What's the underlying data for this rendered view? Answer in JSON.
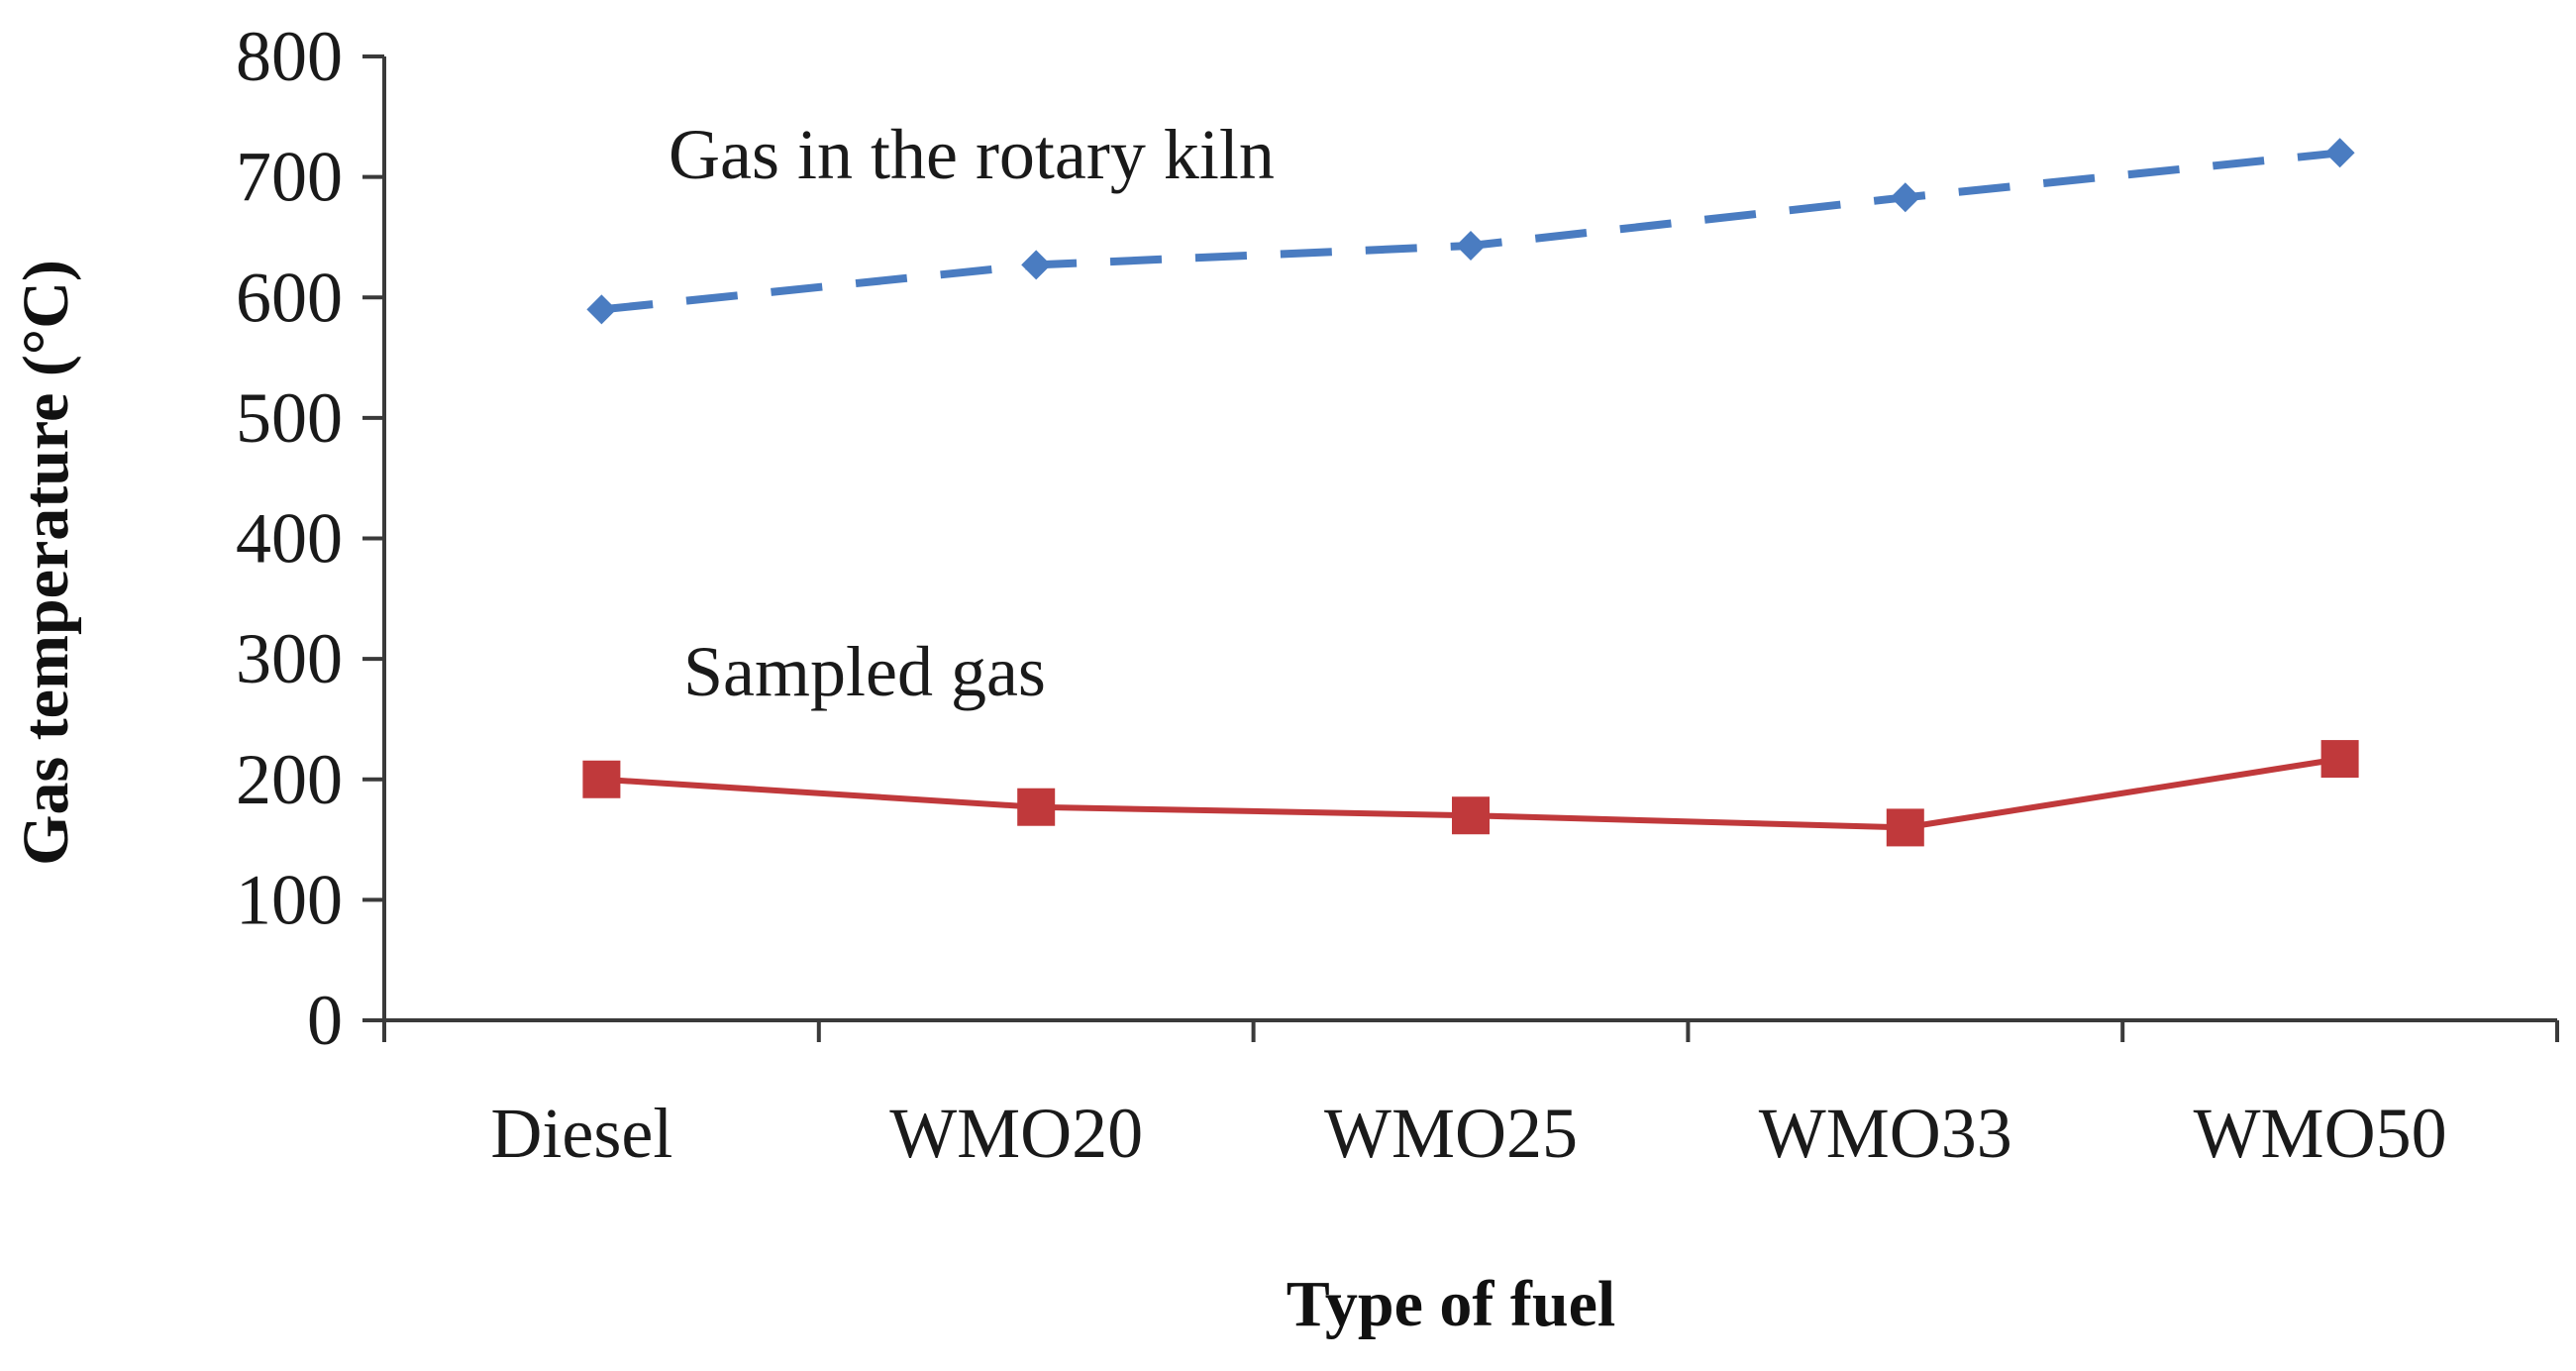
{
  "chart_data": {
    "type": "line",
    "title": "",
    "xlabel": "Type of fuel",
    "ylabel": "Gas temperature (°C)",
    "categories": [
      "Diesel",
      "WMO20",
      "WMO25",
      "WMO33",
      "WMO50"
    ],
    "ylim": [
      0,
      800
    ],
    "yticks": [
      0,
      100,
      200,
      300,
      400,
      500,
      600,
      700,
      800
    ],
    "grid": false,
    "legend": "none",
    "series": [
      {
        "name": "Gas in the rotary kiln",
        "values": [
          590,
          627,
          643,
          683,
          720
        ],
        "color": "#4a7cc1",
        "line_style": "dashed",
        "marker": "diamond"
      },
      {
        "name": "Sampled gas",
        "values": [
          200,
          177,
          170,
          160,
          217
        ],
        "color": "#c0393b",
        "line_style": "solid",
        "marker": "square"
      }
    ],
    "annotations": [
      {
        "text": "Gas in the rotary kiln",
        "series": "Gas in the rotary kiln"
      },
      {
        "text": "Sampled gas",
        "series": "Sampled gas"
      }
    ]
  }
}
